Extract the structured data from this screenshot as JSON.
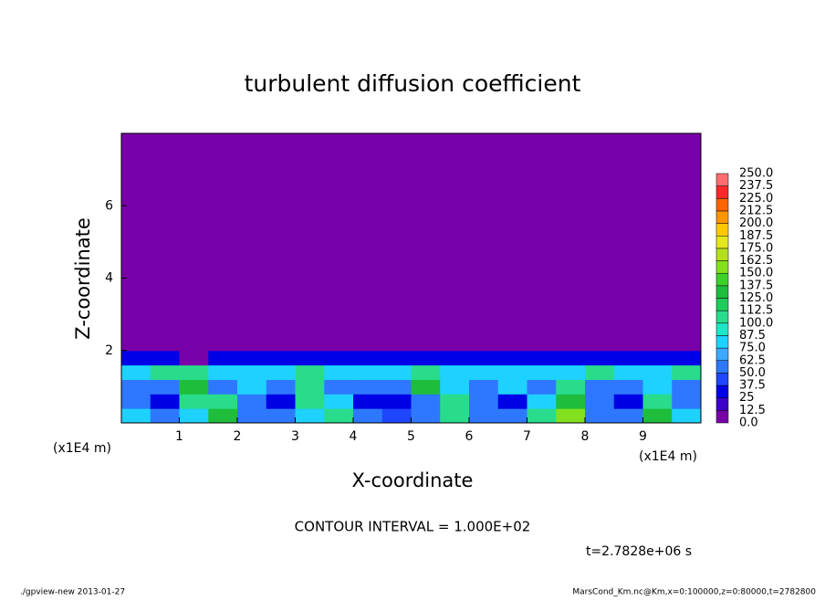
{
  "chart_data": {
    "type": "heatmap",
    "title": "turbulent diffusion coefficient",
    "x_label": "X-coordinate",
    "y_label": "Z-coordinate",
    "x_unit": "(x1E4 m)",
    "y_unit": "(x1E4 m)",
    "annotations": [
      "CONTOUR INTERVAL = 1.000E+02",
      "t=2.7828e+06 s",
      "./gpview-new  2013-01-27",
      "MarsCond_Km.nc@Km,x=0:100000,z=0:80000,t=2782800"
    ],
    "xlim": [
      0,
      10
    ],
    "xticks": [
      1,
      2,
      3,
      4,
      5,
      6,
      7,
      8,
      9
    ],
    "ylim": [
      0,
      8
    ],
    "yticks": [
      2,
      4,
      6
    ],
    "x_edges": [
      0,
      0.5,
      1,
      1.5,
      2,
      2.5,
      3,
      3.5,
      4,
      4.5,
      5,
      5.5,
      6,
      6.5,
      7,
      7.5,
      8,
      8.5,
      9,
      9.5,
      10
    ],
    "y_edges": [
      0,
      0.4,
      0.8,
      1.2,
      1.6,
      2,
      8
    ],
    "z": [
      [
        75,
        62,
        87,
        125,
        62,
        50,
        87,
        112,
        50,
        40,
        62,
        100,
        62,
        50,
        112,
        150,
        62,
        50,
        125,
        87
      ],
      [
        50,
        37,
        112,
        100,
        50,
        37,
        100,
        75,
        37,
        37,
        62,
        112,
        50,
        37,
        75,
        125,
        50,
        37,
        100,
        62
      ],
      [
        62,
        50,
        137,
        62,
        75,
        50,
        112,
        62,
        50,
        62,
        125,
        75,
        62,
        75,
        62,
        100,
        62,
        50,
        87,
        62
      ],
      [
        87,
        100,
        112,
        75,
        87,
        75,
        100,
        75,
        87,
        75,
        112,
        87,
        75,
        87,
        75,
        87,
        100,
        75,
        87,
        100
      ],
      [
        37,
        25,
        12,
        37,
        37,
        37,
        37,
        37,
        37,
        37,
        37,
        37,
        37,
        37,
        37,
        37,
        37,
        37,
        37,
        37
      ],
      [
        0,
        0,
        0,
        0,
        0,
        0,
        0,
        0,
        0,
        0,
        0,
        0,
        0,
        0,
        0,
        0,
        0,
        0,
        0,
        0
      ]
    ],
    "levels": [
      {
        "value": 0,
        "label": "0.0"
      },
      12.5,
      25,
      37.5,
      {
        "value": 50,
        "label": "50.0"
      },
      62.5,
      {
        "value": 75,
        "label": "75.0"
      },
      87.5,
      {
        "value": 100,
        "label": "100.0"
      },
      112.5,
      {
        "value": 125,
        "label": "125.0"
      },
      137.5,
      {
        "value": 150,
        "label": "150.0"
      },
      162.5,
      {
        "value": 175,
        "label": "175.0"
      },
      187.5,
      {
        "value": 200,
        "label": "200.0"
      },
      212.5,
      {
        "value": 225,
        "label": "225.0"
      },
      237.5,
      {
        "value": 250,
        "label": "250.0"
      }
    ],
    "colors": [
      "#7800a8",
      "#3c00c8",
      "#0000e6",
      "#1e46ff",
      "#2e78ff",
      "#3ca8ff",
      "#1ed2ff",
      "#1ee6c8",
      "#28dc8c",
      "#1ecc5a",
      "#1ebe3c",
      "#3cd22a",
      "#82e01e",
      "#b4e01e",
      "#e6e61e",
      "#ffc800",
      "#ff9600",
      "#ff6400",
      "#ff2828",
      "#ff6e6e"
    ]
  }
}
